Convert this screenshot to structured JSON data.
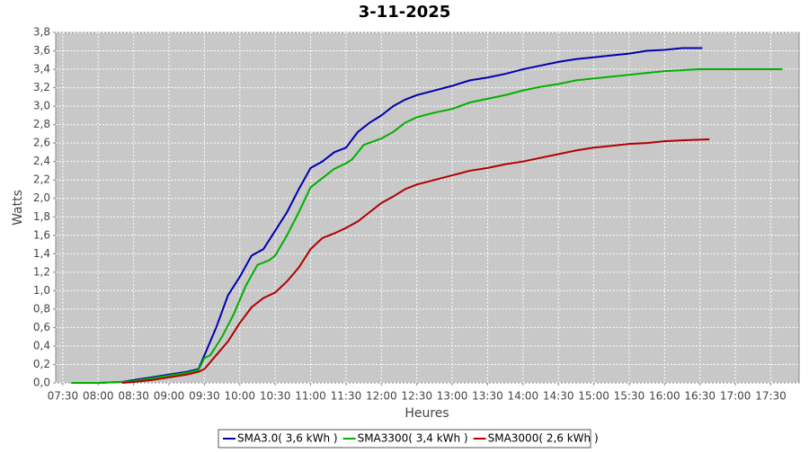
{
  "chart_data": {
    "type": "line",
    "title": "3-11-2025",
    "x_label": "Heures",
    "y_label": "Watts",
    "xlim": [
      "07:24",
      "17:54"
    ],
    "xticks": [
      "07:30",
      "08:00",
      "08:30",
      "09:00",
      "09:30",
      "10:00",
      "10:30",
      "11:00",
      "11:30",
      "12:00",
      "12:30",
      "13:00",
      "13:30",
      "14:00",
      "14:30",
      "15:00",
      "15:30",
      "16:00",
      "16:30",
      "17:00",
      "17:30"
    ],
    "ylim": [
      0,
      3.8
    ],
    "yticks": [
      {
        "value": 0,
        "label": "0,0"
      },
      {
        "value": 0.2,
        "label": "0,2"
      },
      {
        "value": 0.4,
        "label": "0,4"
      },
      {
        "value": 0.6,
        "label": "0,6"
      },
      {
        "value": 0.8,
        "label": "0,8"
      },
      {
        "value": 1,
        "label": "1,0"
      },
      {
        "value": 1.2,
        "label": "1,2"
      },
      {
        "value": 1.4,
        "label": "1,4"
      },
      {
        "value": 1.6,
        "label": "1,6"
      },
      {
        "value": 1.8,
        "label": "1,8"
      },
      {
        "value": 2,
        "label": "2,0"
      },
      {
        "value": 2.2,
        "label": "2,2"
      },
      {
        "value": 2.4,
        "label": "2,4"
      },
      {
        "value": 2.6,
        "label": "2,6"
      },
      {
        "value": 2.8,
        "label": "2,8"
      },
      {
        "value": 3,
        "label": "3,0"
      },
      {
        "value": 3.2,
        "label": "3,2"
      },
      {
        "value": 3.4,
        "label": "3,4"
      },
      {
        "value": 3.6,
        "label": "3,6"
      },
      {
        "value": 3.8,
        "label": "3,8"
      }
    ],
    "grid": true,
    "series": [
      {
        "name": "SMA3.0( 3,6 kWh )",
        "color": "#0000b0",
        "x": [
          "08:00",
          "08:20",
          "08:30",
          "08:45",
          "09:00",
          "09:15",
          "09:25",
          "09:30",
          "09:40",
          "09:50",
          "10:00",
          "10:10",
          "10:20",
          "10:30",
          "10:40",
          "10:50",
          "11:00",
          "11:10",
          "11:20",
          "11:30",
          "11:40",
          "11:50",
          "12:00",
          "12:10",
          "12:20",
          "12:30",
          "12:45",
          "13:00",
          "13:15",
          "13:30",
          "13:45",
          "14:00",
          "14:15",
          "14:30",
          "14:45",
          "15:00",
          "15:15",
          "15:30",
          "15:45",
          "16:00",
          "16:15",
          "16:32"
        ],
        "values": [
          0,
          0.01,
          0.03,
          0.06,
          0.09,
          0.12,
          0.15,
          0.3,
          0.6,
          0.95,
          1.15,
          1.38,
          1.45,
          1.65,
          1.85,
          2.1,
          2.33,
          2.4,
          2.5,
          2.55,
          2.72,
          2.82,
          2.9,
          3.0,
          3.07,
          3.12,
          3.17,
          3.22,
          3.28,
          3.31,
          3.35,
          3.4,
          3.44,
          3.48,
          3.51,
          3.53,
          3.55,
          3.57,
          3.6,
          3.61,
          3.63,
          3.63
        ]
      },
      {
        "name": "SMA3300( 3,4 kWh )",
        "color": "#00b000",
        "x": [
          "07:37",
          "08:00",
          "08:20",
          "08:30",
          "08:45",
          "09:00",
          "09:15",
          "09:25",
          "09:30",
          "09:35",
          "09:45",
          "09:55",
          "10:05",
          "10:15",
          "10:25",
          "10:30",
          "10:40",
          "10:50",
          "11:00",
          "11:10",
          "11:20",
          "11:30",
          "11:35",
          "11:45",
          "12:00",
          "12:10",
          "12:20",
          "12:30",
          "12:45",
          "13:00",
          "13:15",
          "13:30",
          "13:45",
          "14:00",
          "14:15",
          "14:30",
          "14:45",
          "15:00",
          "15:15",
          "15:30",
          "15:45",
          "16:00",
          "16:15",
          "16:30",
          "17:00",
          "17:40"
        ],
        "values": [
          0,
          0,
          0.01,
          0.02,
          0.05,
          0.08,
          0.11,
          0.14,
          0.27,
          0.3,
          0.5,
          0.75,
          1.05,
          1.28,
          1.33,
          1.38,
          1.6,
          1.85,
          2.12,
          2.22,
          2.32,
          2.38,
          2.42,
          2.58,
          2.65,
          2.72,
          2.82,
          2.88,
          2.93,
          2.97,
          3.04,
          3.08,
          3.12,
          3.17,
          3.21,
          3.24,
          3.28,
          3.3,
          3.32,
          3.34,
          3.36,
          3.38,
          3.39,
          3.4,
          3.4,
          3.4
        ]
      },
      {
        "name": "SMA3000( 2,6 kWh )",
        "color": "#b00000",
        "x": [
          "08:20",
          "08:30",
          "08:45",
          "09:00",
          "09:15",
          "09:25",
          "09:30",
          "09:40",
          "09:50",
          "10:00",
          "10:10",
          "10:20",
          "10:30",
          "10:40",
          "10:50",
          "11:00",
          "11:10",
          "11:20",
          "11:30",
          "11:40",
          "11:50",
          "12:00",
          "12:10",
          "12:20",
          "12:30",
          "12:45",
          "13:00",
          "13:15",
          "13:30",
          "13:45",
          "14:00",
          "14:15",
          "14:30",
          "14:45",
          "15:00",
          "15:15",
          "15:30",
          "15:45",
          "16:00",
          "16:15",
          "16:38"
        ],
        "values": [
          0,
          0.01,
          0.03,
          0.06,
          0.09,
          0.12,
          0.15,
          0.3,
          0.45,
          0.65,
          0.82,
          0.92,
          0.98,
          1.1,
          1.25,
          1.45,
          1.57,
          1.62,
          1.68,
          1.75,
          1.85,
          1.95,
          2.02,
          2.1,
          2.15,
          2.2,
          2.25,
          2.3,
          2.33,
          2.37,
          2.4,
          2.44,
          2.48,
          2.52,
          2.55,
          2.57,
          2.59,
          2.6,
          2.62,
          2.63,
          2.64
        ]
      }
    ]
  }
}
